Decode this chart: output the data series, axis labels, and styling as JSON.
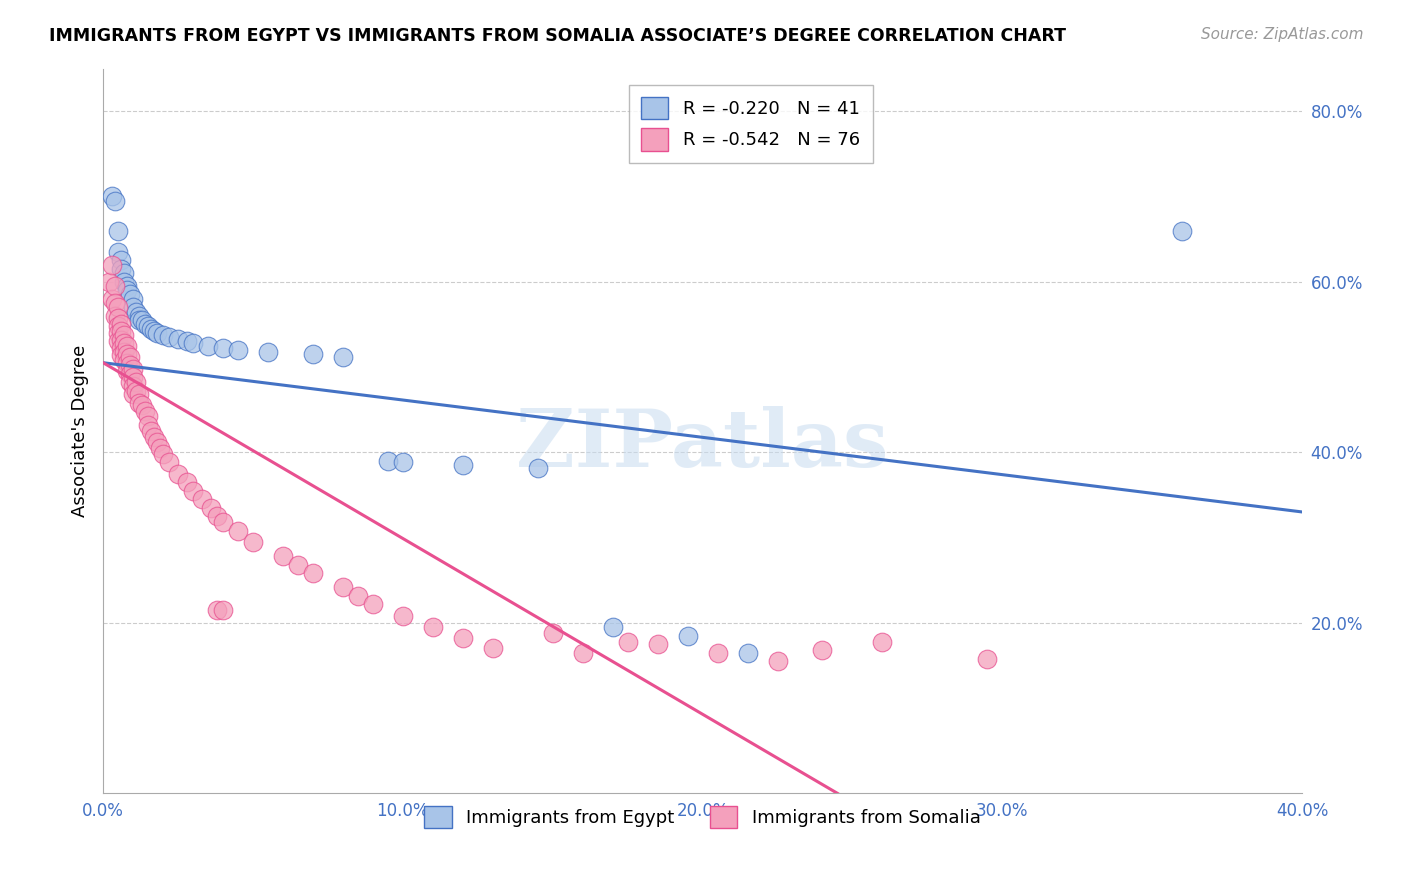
{
  "title": "IMMIGRANTS FROM EGYPT VS IMMIGRANTS FROM SOMALIA ASSOCIATE’S DEGREE CORRELATION CHART",
  "source": "Source: ZipAtlas.com",
  "ylabel": "Associate's Degree",
  "xlim": [
    0.0,
    0.4
  ],
  "ylim": [
    0.0,
    0.85
  ],
  "xtick_labels": [
    "0.0%",
    "",
    "10.0%",
    "",
    "20.0%",
    "",
    "30.0%",
    "",
    "40.0%"
  ],
  "xtick_values": [
    0.0,
    0.05,
    0.1,
    0.15,
    0.2,
    0.25,
    0.3,
    0.35,
    0.4
  ],
  "ytick_labels": [
    "20.0%",
    "40.0%",
    "60.0%",
    "80.0%"
  ],
  "ytick_values": [
    0.2,
    0.4,
    0.6,
    0.8
  ],
  "legend_entries": [
    {
      "label": "R = -0.220   N = 41",
      "color": "#a8c4e8"
    },
    {
      "label": "R = -0.542   N = 76",
      "color": "#f4a0bc"
    }
  ],
  "legend_label_bottom": [
    "Immigrants from Egypt",
    "Immigrants from Somalia"
  ],
  "egypt_color": "#a8c4e8",
  "somalia_color": "#f4a0bc",
  "egypt_line_color": "#4472c4",
  "somalia_line_color": "#e85090",
  "watermark": "ZIPatlas",
  "egypt_line_x": [
    0.0,
    0.4
  ],
  "egypt_line_y": [
    0.505,
    0.33
  ],
  "somalia_line_x": [
    0.0,
    0.245
  ],
  "somalia_line_y": [
    0.505,
    0.0
  ],
  "egypt_scatter": [
    [
      0.003,
      0.7
    ],
    [
      0.004,
      0.695
    ],
    [
      0.005,
      0.66
    ],
    [
      0.005,
      0.635
    ],
    [
      0.006,
      0.625
    ],
    [
      0.006,
      0.615
    ],
    [
      0.007,
      0.61
    ],
    [
      0.007,
      0.6
    ],
    [
      0.008,
      0.595
    ],
    [
      0.008,
      0.59
    ],
    [
      0.009,
      0.585
    ],
    [
      0.01,
      0.58
    ],
    [
      0.01,
      0.57
    ],
    [
      0.011,
      0.565
    ],
    [
      0.012,
      0.56
    ],
    [
      0.012,
      0.555
    ],
    [
      0.013,
      0.555
    ],
    [
      0.014,
      0.55
    ],
    [
      0.015,
      0.548
    ],
    [
      0.016,
      0.545
    ],
    [
      0.017,
      0.542
    ],
    [
      0.018,
      0.54
    ],
    [
      0.02,
      0.538
    ],
    [
      0.022,
      0.535
    ],
    [
      0.025,
      0.533
    ],
    [
      0.028,
      0.53
    ],
    [
      0.03,
      0.528
    ],
    [
      0.035,
      0.525
    ],
    [
      0.04,
      0.522
    ],
    [
      0.045,
      0.52
    ],
    [
      0.055,
      0.518
    ],
    [
      0.07,
      0.515
    ],
    [
      0.08,
      0.512
    ],
    [
      0.095,
      0.39
    ],
    [
      0.1,
      0.388
    ],
    [
      0.12,
      0.385
    ],
    [
      0.145,
      0.382
    ],
    [
      0.17,
      0.195
    ],
    [
      0.195,
      0.185
    ],
    [
      0.215,
      0.165
    ],
    [
      0.36,
      0.66
    ]
  ],
  "somalia_scatter": [
    [
      0.002,
      0.6
    ],
    [
      0.003,
      0.62
    ],
    [
      0.003,
      0.58
    ],
    [
      0.004,
      0.595
    ],
    [
      0.004,
      0.575
    ],
    [
      0.004,
      0.56
    ],
    [
      0.005,
      0.57
    ],
    [
      0.005,
      0.558
    ],
    [
      0.005,
      0.548
    ],
    [
      0.005,
      0.54
    ],
    [
      0.005,
      0.53
    ],
    [
      0.006,
      0.55
    ],
    [
      0.006,
      0.542
    ],
    [
      0.006,
      0.532
    ],
    [
      0.006,
      0.522
    ],
    [
      0.006,
      0.514
    ],
    [
      0.007,
      0.538
    ],
    [
      0.007,
      0.528
    ],
    [
      0.007,
      0.518
    ],
    [
      0.007,
      0.508
    ],
    [
      0.008,
      0.525
    ],
    [
      0.008,
      0.515
    ],
    [
      0.008,
      0.505
    ],
    [
      0.008,
      0.495
    ],
    [
      0.009,
      0.512
    ],
    [
      0.009,
      0.502
    ],
    [
      0.009,
      0.492
    ],
    [
      0.009,
      0.482
    ],
    [
      0.01,
      0.498
    ],
    [
      0.01,
      0.488
    ],
    [
      0.01,
      0.478
    ],
    [
      0.01,
      0.468
    ],
    [
      0.011,
      0.482
    ],
    [
      0.011,
      0.472
    ],
    [
      0.012,
      0.468
    ],
    [
      0.012,
      0.458
    ],
    [
      0.013,
      0.455
    ],
    [
      0.014,
      0.448
    ],
    [
      0.015,
      0.442
    ],
    [
      0.015,
      0.432
    ],
    [
      0.016,
      0.425
    ],
    [
      0.017,
      0.418
    ],
    [
      0.018,
      0.412
    ],
    [
      0.019,
      0.405
    ],
    [
      0.02,
      0.398
    ],
    [
      0.022,
      0.388
    ],
    [
      0.025,
      0.375
    ],
    [
      0.028,
      0.365
    ],
    [
      0.03,
      0.355
    ],
    [
      0.033,
      0.345
    ],
    [
      0.036,
      0.335
    ],
    [
      0.038,
      0.325
    ],
    [
      0.038,
      0.215
    ],
    [
      0.04,
      0.318
    ],
    [
      0.045,
      0.308
    ],
    [
      0.05,
      0.295
    ],
    [
      0.06,
      0.278
    ],
    [
      0.065,
      0.268
    ],
    [
      0.07,
      0.258
    ],
    [
      0.08,
      0.242
    ],
    [
      0.085,
      0.232
    ],
    [
      0.09,
      0.222
    ],
    [
      0.1,
      0.208
    ],
    [
      0.11,
      0.195
    ],
    [
      0.12,
      0.182
    ],
    [
      0.13,
      0.17
    ],
    [
      0.16,
      0.165
    ],
    [
      0.185,
      0.175
    ],
    [
      0.205,
      0.165
    ],
    [
      0.225,
      0.155
    ],
    [
      0.26,
      0.178
    ],
    [
      0.295,
      0.158
    ],
    [
      0.04,
      0.215
    ],
    [
      0.15,
      0.188
    ],
    [
      0.175,
      0.178
    ],
    [
      0.24,
      0.168
    ]
  ]
}
